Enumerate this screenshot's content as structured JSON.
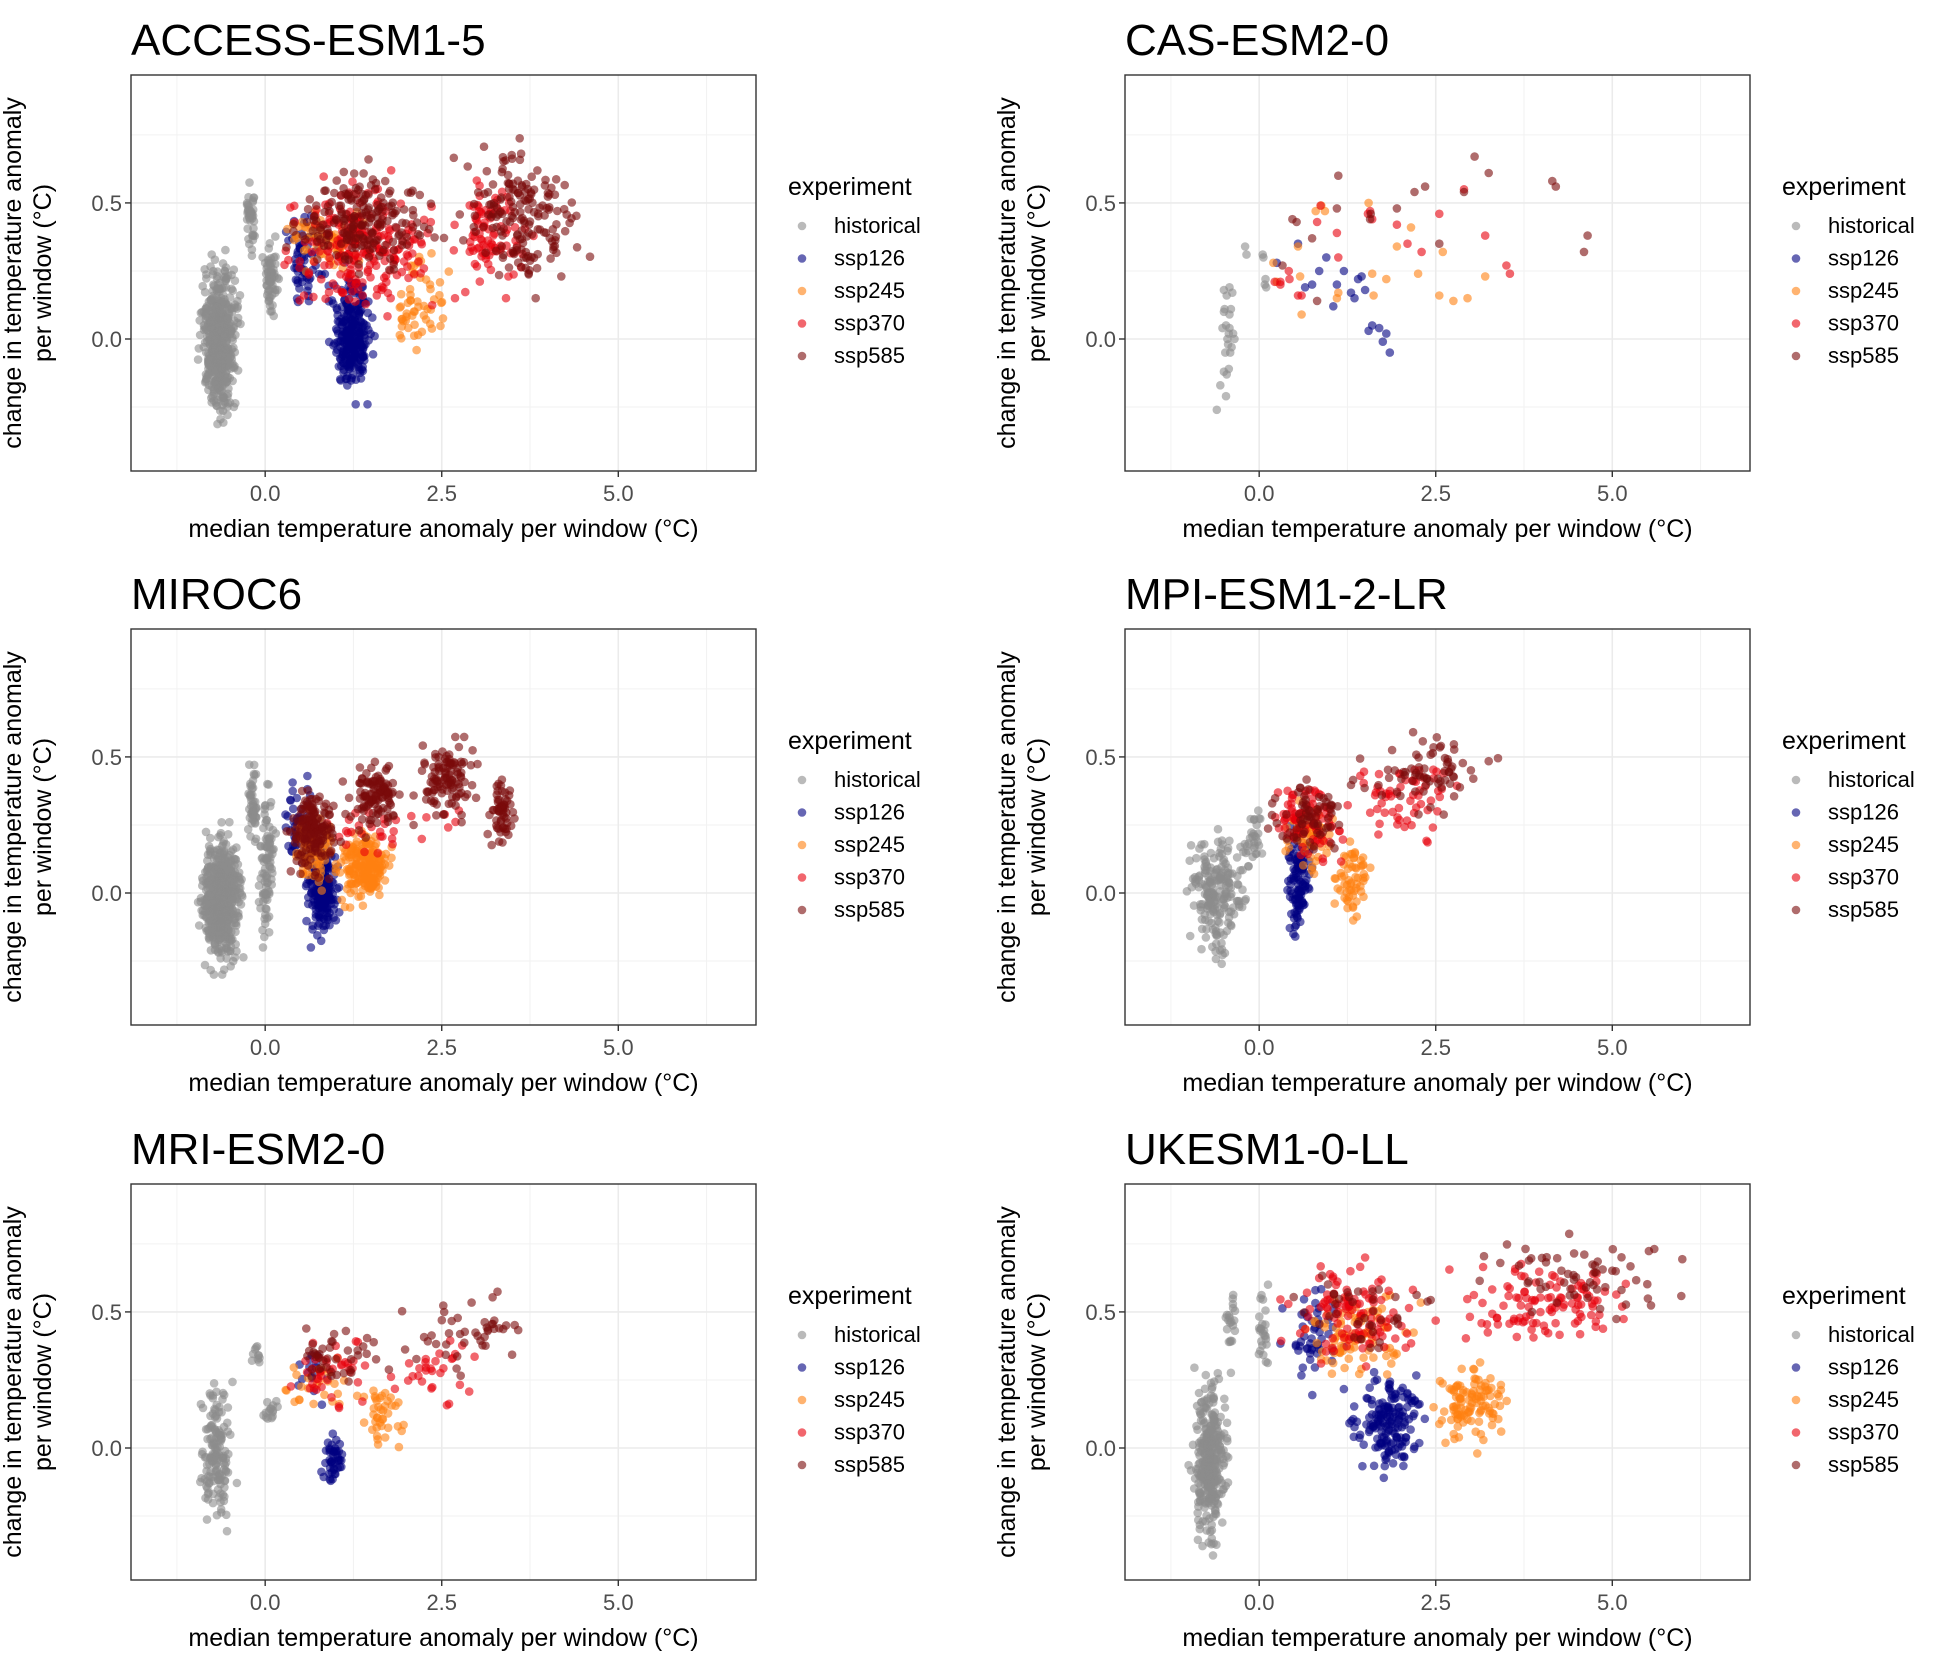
{
  "chart_data": {
    "type": "scatter",
    "layout": "3 rows x 2 columns facets",
    "xlabel": "median temperature anomaly per window (°C)",
    "ylabel_line1": "change in temperature anomaly",
    "ylabel_line2": "per window (°C)",
    "xlim": [
      -1.9,
      6.95
    ],
    "ylim": [
      -0.485,
      0.97
    ],
    "x_ticks": [
      0.0,
      2.5,
      5.0
    ],
    "x_tick_labels": [
      "0.0",
      "2.5",
      "5.0"
    ],
    "x_minor": [
      -1.25,
      1.25,
      3.75,
      6.25
    ],
    "y_ticks": [
      0.0,
      0.5
    ],
    "y_tick_labels": [
      "0.0",
      "0.5"
    ],
    "y_minor": [
      -0.25,
      0.25,
      0.75
    ],
    "grid": true,
    "legend": {
      "title": "experiment",
      "placement": "right",
      "entries": [
        {
          "key": "historical",
          "label": "historical",
          "color": "#8c8c8c"
        },
        {
          "key": "ssp126",
          "label": "ssp126",
          "color": "#000080"
        },
        {
          "key": "ssp245",
          "label": "ssp245",
          "color": "#ff8010"
        },
        {
          "key": "ssp370",
          "label": "ssp370",
          "color": "#e8000b"
        },
        {
          "key": "ssp585",
          "label": "ssp585",
          "color": "#7a0a0a"
        }
      ]
    },
    "point_alpha": 0.6,
    "panels": [
      {
        "title": "ACCESS-ESM1-5",
        "clusters": [
          {
            "exp": "historical",
            "x": [
              -0.95,
              -0.35
            ],
            "y": [
              -0.32,
              0.33
            ],
            "n": 520
          },
          {
            "exp": "historical",
            "x": [
              -0.3,
              -0.1
            ],
            "y": [
              0.25,
              0.62
            ],
            "n": 40
          },
          {
            "exp": "historical",
            "x": [
              -0.05,
              0.2
            ],
            "y": [
              0.05,
              0.42
            ],
            "n": 60
          },
          {
            "exp": "ssp126",
            "x": [
              0.25,
              0.9
            ],
            "y": [
              0.1,
              0.5
            ],
            "n": 60
          },
          {
            "exp": "ssp126",
            "x": [
              0.9,
              1.55
            ],
            "y": [
              -0.24,
              0.28
            ],
            "n": 260
          },
          {
            "exp": "ssp245",
            "x": [
              0.3,
              1.5
            ],
            "y": [
              0.2,
              0.52
            ],
            "n": 60
          },
          {
            "exp": "ssp245",
            "x": [
              1.7,
              2.6
            ],
            "y": [
              -0.09,
              0.34
            ],
            "n": 55
          },
          {
            "exp": "ssp370",
            "x": [
              0.2,
              2.5
            ],
            "y": [
              0.05,
              0.62
            ],
            "n": 230
          },
          {
            "exp": "ssp370",
            "x": [
              2.5,
              3.8
            ],
            "y": [
              0.15,
              0.62
            ],
            "n": 90
          },
          {
            "exp": "ssp585",
            "x": [
              0.3,
              2.6
            ],
            "y": [
              0.22,
              0.66
            ],
            "n": 200
          },
          {
            "exp": "ssp585",
            "x": [
              2.6,
              4.6
            ],
            "y": [
              0.15,
              0.76
            ],
            "n": 170
          }
        ]
      },
      {
        "title": "CAS-ESM2-0",
        "points": [
          {
            "exp": "historical",
            "x": [
              -0.42,
              -0.38,
              -0.5,
              -0.46,
              -0.4,
              -0.47,
              -0.42,
              -0.52,
              -0.45,
              -0.37,
              -0.44,
              -0.48,
              -0.41,
              -0.39,
              -0.5,
              -0.46,
              -0.43,
              -0.55,
              -0.47,
              -0.5,
              -0.6,
              -0.35,
              -0.42,
              -0.2,
              -0.18,
              0.05,
              0.06,
              0.08,
              0.09,
              0.1,
              -0.49,
              -0.43
            ],
            "y": [
              0.19,
              0.17,
              0.1,
              0.16,
              0.11,
              0.05,
              0.04,
              0.04,
              0.0,
              0.02,
              -0.02,
              -0.05,
              -0.05,
              -0.03,
              -0.12,
              -0.13,
              -0.11,
              -0.17,
              -0.21,
              0.18,
              -0.26,
              0.0,
              0.09,
              0.34,
              0.31,
              0.31,
              0.3,
              0.2,
              0.22,
              0.19,
              0.11,
              0.02
            ]
          },
          {
            "exp": "ssp126",
            "x": [
              0.25,
              0.55,
              0.65,
              0.75,
              0.95,
              1.1,
              1.2,
              1.35,
              1.4,
              1.5,
              1.45,
              1.55,
              0.85,
              1.05,
              1.3,
              1.6,
              1.7,
              1.75,
              1.8,
              1.85
            ],
            "y": [
              0.28,
              0.35,
              0.19,
              0.2,
              0.3,
              0.2,
              0.25,
              0.15,
              0.22,
              0.18,
              0.23,
              0.03,
              0.25,
              0.12,
              0.17,
              0.05,
              0.04,
              -0.01,
              0.02,
              -0.05
            ]
          },
          {
            "exp": "ssp245",
            "x": [
              0.2,
              0.55,
              0.6,
              0.25,
              0.8,
              0.88,
              0.93,
              1.12,
              1.1,
              1.55,
              1.6,
              1.62,
              1.8,
              1.95,
              2.15,
              2.25,
              2.55,
              2.6,
              2.75,
              2.95,
              3.2,
              0.58
            ],
            "y": [
              0.28,
              0.34,
              0.09,
              0.21,
              0.47,
              0.49,
              0.47,
              0.17,
              0.15,
              0.5,
              0.24,
              0.16,
              0.22,
              0.34,
              0.41,
              0.24,
              0.16,
              0.32,
              0.14,
              0.15,
              0.23,
              0.23
            ]
          },
          {
            "exp": "ssp370",
            "x": [
              0.22,
              0.3,
              0.42,
              0.43,
              0.55,
              0.6,
              0.82,
              0.87,
              1.1,
              1.12,
              1.54,
              1.57,
              1.6,
              1.95,
              2.1,
              2.3,
              2.55,
              2.9,
              3.2,
              3.5,
              3.55,
              0.3
            ],
            "y": [
              0.21,
              0.2,
              0.25,
              0.22,
              0.16,
              0.16,
              0.43,
              0.49,
              0.39,
              0.3,
              0.46,
              0.47,
              0.44,
              0.42,
              0.35,
              0.32,
              0.46,
              0.55,
              0.38,
              0.27,
              0.24,
              0.21
            ]
          },
          {
            "exp": "ssp585",
            "x": [
              0.33,
              0.47,
              0.53,
              0.75,
              0.82,
              1.1,
              1.12,
              1.57,
              1.58,
              1.95,
              2.2,
              2.35,
              2.55,
              2.9,
              3.05,
              3.25,
              4.15,
              4.2,
              4.6,
              4.65
            ],
            "y": [
              0.27,
              0.44,
              0.43,
              0.37,
              0.14,
              0.48,
              0.6,
              0.44,
              0.46,
              0.48,
              0.54,
              0.56,
              0.35,
              0.54,
              0.67,
              0.61,
              0.58,
              0.56,
              0.32,
              0.38
            ]
          }
        ]
      },
      {
        "title": "MIROC6",
        "clusters": [
          {
            "exp": "historical",
            "x": [
              -0.95,
              -0.3
            ],
            "y": [
              -0.3,
              0.26
            ],
            "n": 560
          },
          {
            "exp": "historical",
            "x": [
              -0.25,
              -0.1
            ],
            "y": [
              0.12,
              0.52
            ],
            "n": 50
          },
          {
            "exp": "historical",
            "x": [
              -0.1,
              0.15
            ],
            "y": [
              -0.2,
              0.4
            ],
            "n": 90
          },
          {
            "exp": "ssp126",
            "x": [
              0.2,
              0.7
            ],
            "y": [
              0.05,
              0.43
            ],
            "n": 50
          },
          {
            "exp": "ssp126",
            "x": [
              0.55,
              1.05
            ],
            "y": [
              -0.2,
              0.2
            ],
            "n": 200
          },
          {
            "exp": "ssp245",
            "x": [
              0.3,
              1.0
            ],
            "y": [
              0.0,
              0.32
            ],
            "n": 90
          },
          {
            "exp": "ssp245",
            "x": [
              1.0,
              1.8
            ],
            "y": [
              -0.06,
              0.25
            ],
            "n": 200
          },
          {
            "exp": "ssp370",
            "x": [
              0.3,
              3.0
            ],
            "y": [
              0.12,
              0.35
            ],
            "n": 30
          },
          {
            "exp": "ssp585",
            "x": [
              0.25,
              1.1
            ],
            "y": [
              0.05,
              0.43
            ],
            "n": 160
          },
          {
            "exp": "ssp585",
            "x": [
              1.1,
              2.0
            ],
            "y": [
              0.2,
              0.5
            ],
            "n": 110
          },
          {
            "exp": "ssp585",
            "x": [
              2.0,
              3.1
            ],
            "y": [
              0.25,
              0.59
            ],
            "n": 110
          },
          {
            "exp": "ssp585",
            "x": [
              3.1,
              3.55
            ],
            "y": [
              0.14,
              0.44
            ],
            "n": 60
          }
        ]
      },
      {
        "title": "MPI-ESM1-2-LR",
        "clusters": [
          {
            "exp": "historical",
            "x": [
              -1.05,
              -0.15
            ],
            "y": [
              -0.26,
              0.24
            ],
            "n": 200
          },
          {
            "exp": "historical",
            "x": [
              -0.3,
              0.1
            ],
            "y": [
              0.05,
              0.33
            ],
            "n": 30
          },
          {
            "exp": "ssp126",
            "x": [
              0.35,
              0.75
            ],
            "y": [
              -0.18,
              0.27
            ],
            "n": 110
          },
          {
            "exp": "ssp245",
            "x": [
              0.3,
              1.1
            ],
            "y": [
              0.05,
              0.35
            ],
            "n": 60
          },
          {
            "exp": "ssp245",
            "x": [
              1.0,
              1.6
            ],
            "y": [
              -0.12,
              0.2
            ],
            "n": 60
          },
          {
            "exp": "ssp370",
            "x": [
              0.1,
              1.3
            ],
            "y": [
              0.08,
              0.45
            ],
            "n": 90
          },
          {
            "exp": "ssp370",
            "x": [
              1.3,
              2.8
            ],
            "y": [
              0.15,
              0.55
            ],
            "n": 60
          },
          {
            "exp": "ssp585",
            "x": [
              0.1,
              1.3
            ],
            "y": [
              0.12,
              0.44
            ],
            "n": 70
          },
          {
            "exp": "ssp585",
            "x": [
              1.3,
              3.4
            ],
            "y": [
              0.25,
              0.62
            ],
            "n": 70
          }
        ]
      },
      {
        "title": "MRI-ESM2-0",
        "clusters": [
          {
            "exp": "historical",
            "x": [
              -0.95,
              -0.4
            ],
            "y": [
              -0.33,
              0.29
            ],
            "n": 150
          },
          {
            "exp": "historical",
            "x": [
              -0.2,
              -0.05
            ],
            "y": [
              0.28,
              0.43
            ],
            "n": 10
          },
          {
            "exp": "historical",
            "x": [
              -0.05,
              0.2
            ],
            "y": [
              0.07,
              0.21
            ],
            "n": 15
          },
          {
            "exp": "ssp126",
            "x": [
              0.2,
              1.0
            ],
            "y": [
              0.15,
              0.42
            ],
            "n": 15
          },
          {
            "exp": "ssp126",
            "x": [
              0.75,
              1.15
            ],
            "y": [
              -0.16,
              0.07
            ],
            "n": 45
          },
          {
            "exp": "ssp245",
            "x": [
              0.2,
              1.3
            ],
            "y": [
              0.1,
              0.33
            ],
            "n": 25
          },
          {
            "exp": "ssp245",
            "x": [
              1.3,
              2.0
            ],
            "y": [
              -0.06,
              0.3
            ],
            "n": 40
          },
          {
            "exp": "ssp370",
            "x": [
              0.2,
              1.6
            ],
            "y": [
              0.13,
              0.42
            ],
            "n": 40
          },
          {
            "exp": "ssp370",
            "x": [
              1.6,
              3.2
            ],
            "y": [
              0.15,
              0.42
            ],
            "n": 30
          },
          {
            "exp": "ssp585",
            "x": [
              0.2,
              1.6
            ],
            "y": [
              0.22,
              0.46
            ],
            "n": 40
          },
          {
            "exp": "ssp585",
            "x": [
              1.6,
              4.1
            ],
            "y": [
              0.25,
              0.6
            ],
            "n": 45
          }
        ]
      },
      {
        "title": "UKESM1-0-LL",
        "clusters": [
          {
            "exp": "historical",
            "x": [
              -1.0,
              -0.4
            ],
            "y": [
              -0.41,
              0.33
            ],
            "n": 330
          },
          {
            "exp": "historical",
            "x": [
              -0.5,
              -0.3
            ],
            "y": [
              0.3,
              0.65
            ],
            "n": 20
          },
          {
            "exp": "historical",
            "x": [
              -0.05,
              0.15
            ],
            "y": [
              0.26,
              0.6
            ],
            "n": 25
          },
          {
            "exp": "ssp126",
            "x": [
              0.3,
              1.2
            ],
            "y": [
              0.15,
              0.63
            ],
            "n": 50
          },
          {
            "exp": "ssp126",
            "x": [
              1.2,
              2.4
            ],
            "y": [
              -0.11,
              0.3
            ],
            "n": 170
          },
          {
            "exp": "ssp245",
            "x": [
              0.35,
              2.4
            ],
            "y": [
              0.25,
              0.6
            ],
            "n": 90
          },
          {
            "exp": "ssp245",
            "x": [
              2.4,
              3.7
            ],
            "y": [
              -0.02,
              0.32
            ],
            "n": 110
          },
          {
            "exp": "ssp370",
            "x": [
              0.3,
              2.5
            ],
            "y": [
              0.3,
              0.7
            ],
            "n": 110
          },
          {
            "exp": "ssp370",
            "x": [
              2.5,
              5.5
            ],
            "y": [
              0.35,
              0.72
            ],
            "n": 110
          },
          {
            "exp": "ssp585",
            "x": [
              0.3,
              2.5
            ],
            "y": [
              0.3,
              0.7
            ],
            "n": 40
          },
          {
            "exp": "ssp585",
            "x": [
              2.5,
              6.5
            ],
            "y": [
              0.42,
              0.84
            ],
            "n": 60
          }
        ]
      }
    ]
  }
}
